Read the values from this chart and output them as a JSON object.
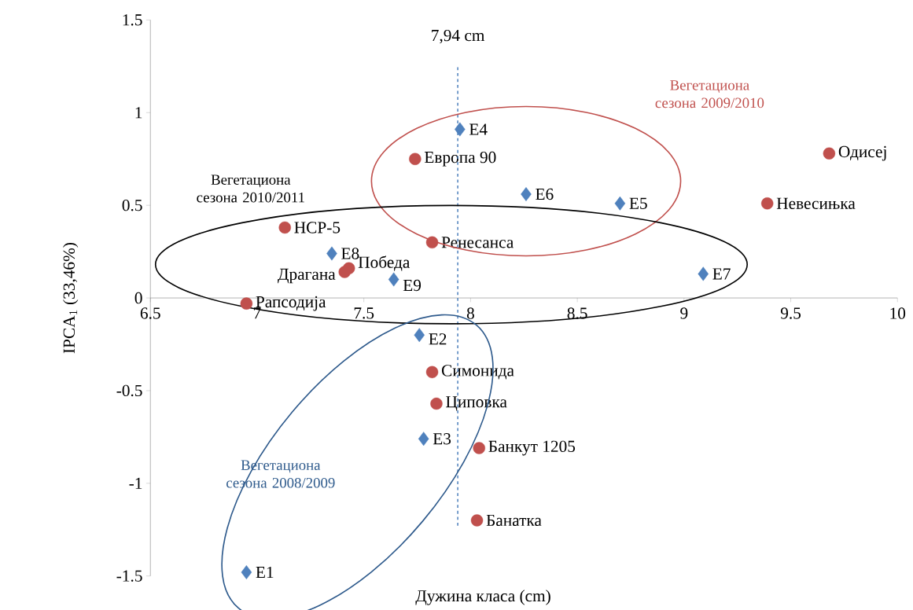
{
  "chart_data": {
    "type": "scatter",
    "xlabel": "Дужина класа (cm)",
    "ylabel": "IPCA$_{1}$ (33,46%)",
    "xlim": [
      6.5,
      10
    ],
    "xticks": [
      6.5,
      7,
      7.5,
      8,
      8.5,
      9,
      9.5,
      10
    ],
    "ylim": [
      -1.5,
      1.5
    ],
    "yticks": [
      -1.5,
      -1,
      -0.5,
      0,
      0.5,
      1,
      1.5
    ],
    "ref_lines": [
      {
        "axis": "x",
        "value": 7.94,
        "label": "7,94 cm",
        "color": "#4f81bd",
        "line_style": "dashed"
      }
    ],
    "annotations": [
      "Вегетациона сезона 2009/2010",
      "Вегетациона сезона 2010/2011",
      "Вегетациона сезона 2008/2009"
    ],
    "series": [
      {
        "name": "Одисеј",
        "color": "#c0504d",
        "marker": "circle",
        "x": [
          9.68
        ],
        "values": [
          0.78
        ]
      },
      {
        "name": "Невесињка",
        "color": "#c0504d",
        "marker": "circle",
        "x": [
          9.39
        ],
        "values": [
          0.51
        ]
      },
      {
        "name": "Европа 90",
        "color": "#c0504d",
        "marker": "circle",
        "x": [
          7.74
        ],
        "values": [
          0.75
        ]
      },
      {
        "name": "НСР-5",
        "color": "#c0504d",
        "marker": "circle",
        "x": [
          7.13
        ],
        "values": [
          0.38
        ]
      },
      {
        "name": "Ренесанса",
        "color": "#c0504d",
        "marker": "circle",
        "x": [
          7.82
        ],
        "values": [
          0.3
        ]
      },
      {
        "name": "Драгана",
        "color": "#c0504d",
        "marker": "circle",
        "x": [
          7.41
        ],
        "values": [
          0.14
        ]
      },
      {
        "name": "Победа",
        "color": "#c0504d",
        "marker": "circle",
        "x": [
          7.43
        ],
        "values": [
          0.16
        ]
      },
      {
        "name": "Рапсодија",
        "color": "#c0504d",
        "marker": "circle",
        "x": [
          6.95
        ],
        "values": [
          -0.03
        ]
      },
      {
        "name": "Симонида",
        "color": "#c0504d",
        "marker": "circle",
        "x": [
          7.82
        ],
        "values": [
          -0.4
        ]
      },
      {
        "name": "Циповка",
        "color": "#c0504d",
        "marker": "circle",
        "x": [
          7.84
        ],
        "values": [
          -0.57
        ]
      },
      {
        "name": "Банкут 1205",
        "color": "#c0504d",
        "marker": "circle",
        "x": [
          8.04
        ],
        "values": [
          -0.81
        ]
      },
      {
        "name": "Банатка",
        "color": "#c0504d",
        "marker": "circle",
        "x": [
          8.03
        ],
        "values": [
          -1.2
        ]
      },
      {
        "name": "E1",
        "color": "#4f81bd",
        "marker": "diamond",
        "x": [
          6.95
        ],
        "values": [
          -1.48
        ]
      },
      {
        "name": "E2",
        "color": "#4f81bd",
        "marker": "diamond",
        "x": [
          7.76
        ],
        "values": [
          -0.2
        ]
      },
      {
        "name": "E3",
        "color": "#4f81bd",
        "marker": "diamond",
        "x": [
          7.78
        ],
        "values": [
          -0.76
        ]
      },
      {
        "name": "E4",
        "color": "#4f81bd",
        "marker": "diamond",
        "x": [
          7.95
        ],
        "values": [
          0.91
        ]
      },
      {
        "name": "E5",
        "color": "#4f81bd",
        "marker": "diamond",
        "x": [
          8.7
        ],
        "values": [
          0.51
        ]
      },
      {
        "name": "E6",
        "color": "#4f81bd",
        "marker": "diamond",
        "x": [
          8.26
        ],
        "values": [
          0.56
        ]
      },
      {
        "name": "E7",
        "color": "#4f81bd",
        "marker": "diamond",
        "x": [
          9.09
        ],
        "values": [
          0.13
        ]
      },
      {
        "name": "E8",
        "color": "#4f81bd",
        "marker": "diamond",
        "x": [
          7.35
        ],
        "values": [
          0.24
        ]
      },
      {
        "name": "E9",
        "color": "#4f81bd",
        "marker": "diamond",
        "x": [
          7.64
        ],
        "values": [
          0.1
        ]
      }
    ]
  }
}
